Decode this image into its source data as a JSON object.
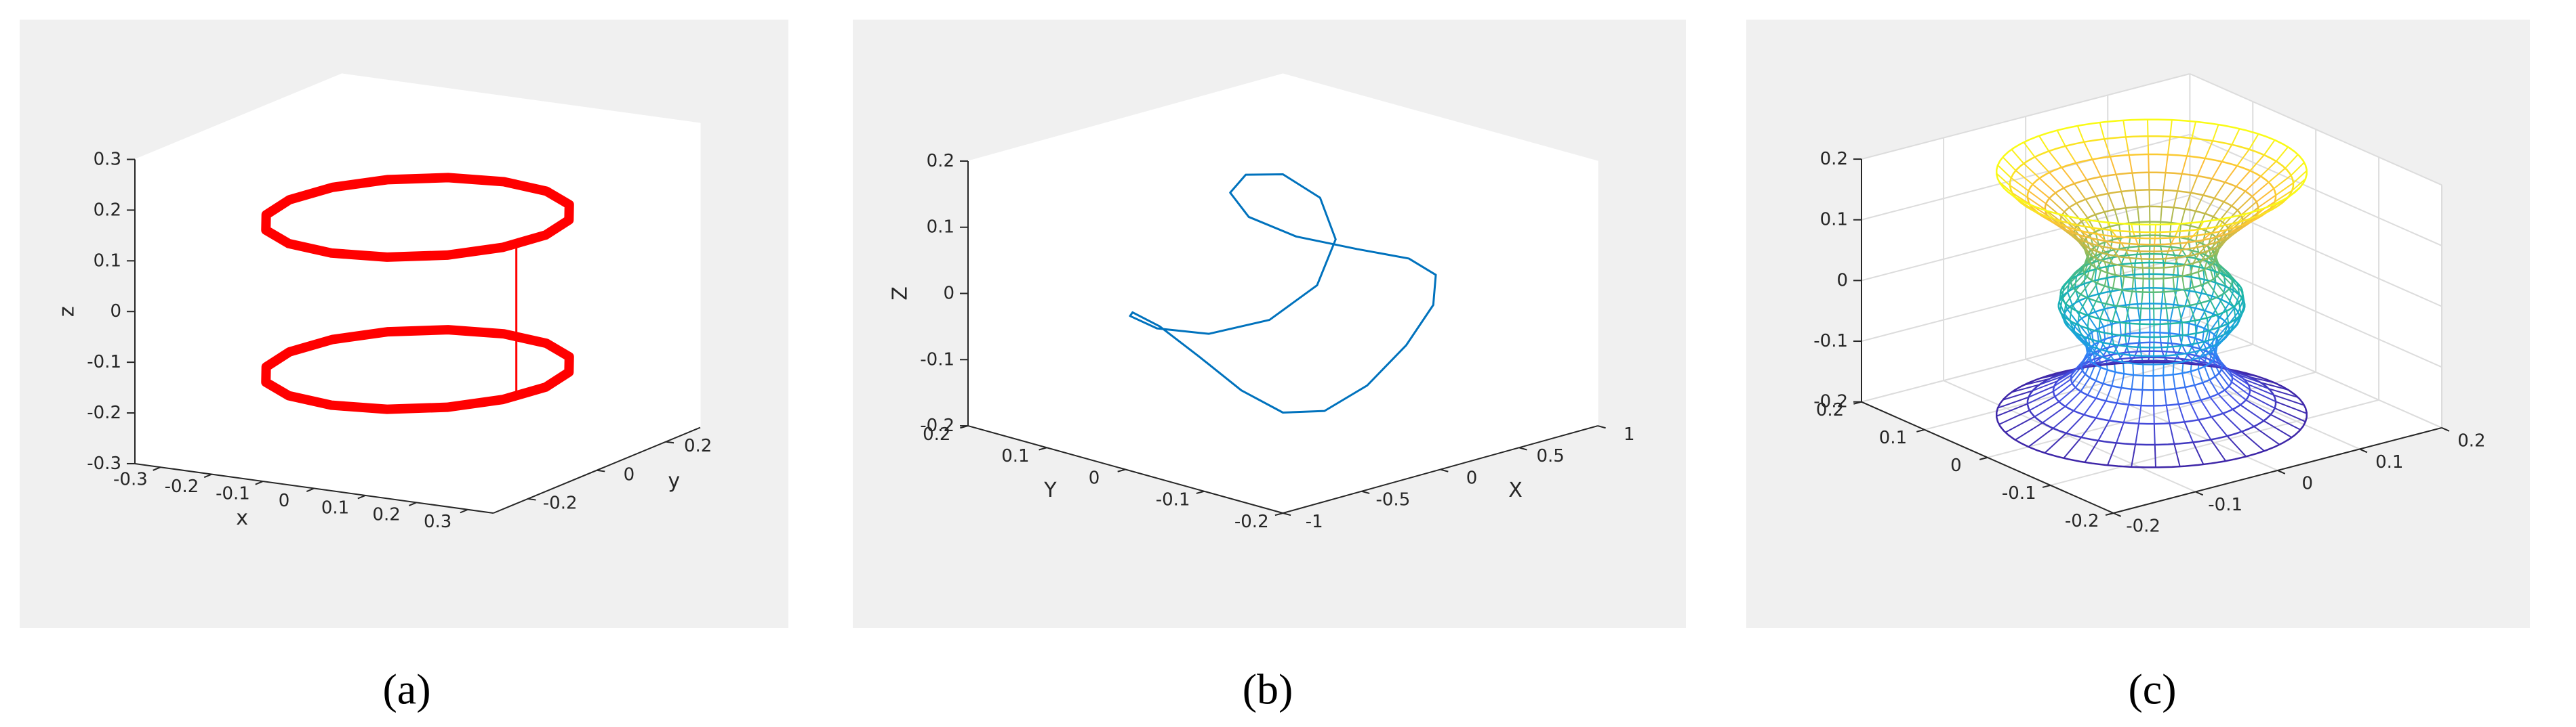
{
  "chart_data": [
    {
      "type": "line3d",
      "label": "(a)",
      "xlabel": "x",
      "ylabel": "y",
      "zlabel": "z",
      "xlim": [
        -0.35,
        0.35
      ],
      "ylim": [
        -0.3,
        0.3
      ],
      "zlim": [
        -0.3,
        0.3
      ],
      "xticks": [
        -0.3,
        -0.2,
        -0.1,
        0,
        0.1,
        0.2,
        0.3
      ],
      "yticks": [
        -0.2,
        0,
        0.2
      ],
      "zticks": [
        -0.3,
        -0.2,
        -0.1,
        0,
        0.1,
        0.2,
        0.3
      ],
      "grid": false,
      "series": [
        {
          "color": "#ff0000",
          "marker": true,
          "closed": true,
          "x": [
            0.25,
            0.231,
            0.177,
            0.096,
            0,
            -0.096,
            -0.177,
            -0.231,
            -0.25,
            -0.231,
            -0.177,
            -0.096,
            0,
            0.096,
            0.177,
            0.231
          ],
          "y": [
            0,
            0.096,
            0.177,
            0.231,
            0.25,
            0.231,
            0.177,
            0.096,
            0,
            -0.096,
            -0.177,
            -0.231,
            -0.25,
            -0.231,
            -0.177,
            -0.096
          ],
          "z": [
            0.15,
            0.15,
            0.15,
            0.15,
            0.15,
            0.15,
            0.15,
            0.15,
            0.15,
            0.15,
            0.15,
            0.15,
            0.15,
            0.15,
            0.15,
            0.15
          ]
        },
        {
          "color": "#ff0000",
          "marker": true,
          "closed": true,
          "x": [
            0.25,
            0.231,
            0.177,
            0.096,
            0,
            -0.096,
            -0.177,
            -0.231,
            -0.25,
            -0.231,
            -0.177,
            -0.096,
            0,
            0.096,
            0.177,
            0.231
          ],
          "y": [
            0,
            0.096,
            0.177,
            0.231,
            0.25,
            0.231,
            0.177,
            0.096,
            0,
            -0.096,
            -0.177,
            -0.231,
            -0.25,
            -0.231,
            -0.177,
            -0.096
          ],
          "z": [
            -0.15,
            -0.15,
            -0.15,
            -0.15,
            -0.15,
            -0.15,
            -0.15,
            -0.15,
            -0.15,
            -0.15,
            -0.15,
            -0.15,
            -0.15,
            -0.15,
            -0.15,
            -0.15
          ]
        },
        {
          "color": "#ff0000",
          "marker": false,
          "closed": false,
          "x": [
            0.24,
            0.24
          ],
          "y": [
            -0.07,
            -0.07
          ],
          "z": [
            0.15,
            -0.15
          ]
        }
      ]
    },
    {
      "type": "line3d",
      "label": "(b)",
      "xlabel": "X",
      "ylabel": "Y",
      "zlabel": "Z",
      "xlim": [
        -1,
        1
      ],
      "ylim": [
        -0.2,
        0.2
      ],
      "zlim": [
        -0.2,
        0.2
      ],
      "xticks": [
        -1,
        -0.5,
        0,
        0.5,
        1
      ],
      "yticks": [
        -0.2,
        -0.1,
        0,
        0.1,
        0.2
      ],
      "zticks": [
        -0.2,
        -0.1,
        0,
        0.1,
        0.2
      ],
      "grid": false,
      "series": [
        {
          "color": "#0072bd",
          "marker": false,
          "closed": true,
          "x": [
            0.8,
            0.721,
            0.52,
            0.283,
            0.1,
            0.014,
            0,
            -0.014,
            -0.1,
            -0.283,
            -0.52,
            -0.721,
            -0.8,
            -0.721,
            -0.52,
            -0.283,
            -0.1,
            -0.014,
            0,
            0.014,
            0.1,
            0.283,
            0.52,
            0.721
          ],
          "y": [
            0,
            0.05,
            0.087,
            0.1,
            0.087,
            0.05,
            0,
            -0.05,
            -0.087,
            -0.1,
            -0.087,
            -0.05,
            0,
            0.05,
            0.087,
            0.1,
            0.087,
            0.05,
            0,
            -0.05,
            -0.087,
            -0.1,
            -0.087,
            -0.05
          ],
          "z": [
            0,
            0.003,
            0.023,
            0.064,
            0.117,
            0.162,
            0.18,
            0.162,
            0.117,
            0.064,
            0.023,
            0.003,
            0,
            -0.003,
            -0.023,
            -0.064,
            -0.117,
            -0.162,
            -0.18,
            -0.162,
            -0.117,
            -0.064,
            -0.023,
            -0.003
          ]
        }
      ]
    },
    {
      "type": "surface3d",
      "label": "(c)",
      "xlim": [
        -0.2,
        0.2
      ],
      "ylim": [
        -0.2,
        0.2
      ],
      "zlim": [
        -0.2,
        0.2
      ],
      "xticks": [
        -0.2,
        -0.1,
        0,
        0.1,
        0.2
      ],
      "yticks": [
        -0.2,
        -0.1,
        0,
        0.1,
        0.2
      ],
      "zticks": [
        -0.2,
        -0.1,
        0,
        0.1,
        0.2
      ],
      "grid": true,
      "colormap": [
        "#3e26a8",
        "#4653e5",
        "#2e87f7",
        "#16a6d7",
        "#20b7a5",
        "#6abd6f",
        "#c1b94a",
        "#fcbe39",
        "#f9fb15"
      ],
      "surface": {
        "z": [
          -0.2,
          -0.18,
          -0.16,
          -0.14,
          -0.12,
          -0.1,
          -0.08,
          -0.06,
          -0.04,
          -0.02,
          0,
          0.02,
          0.04,
          0.06,
          0.08,
          0.1,
          0.12,
          0.14,
          0.16,
          0.18,
          0.2
        ],
        "r": [
          0.15,
          0.12,
          0.095,
          0.078,
          0.068,
          0.062,
          0.064,
          0.075,
          0.085,
          0.09,
          0.088,
          0.078,
          0.066,
          0.062,
          0.066,
          0.075,
          0.088,
          0.103,
          0.12,
          0.137,
          0.15
        ]
      }
    }
  ]
}
